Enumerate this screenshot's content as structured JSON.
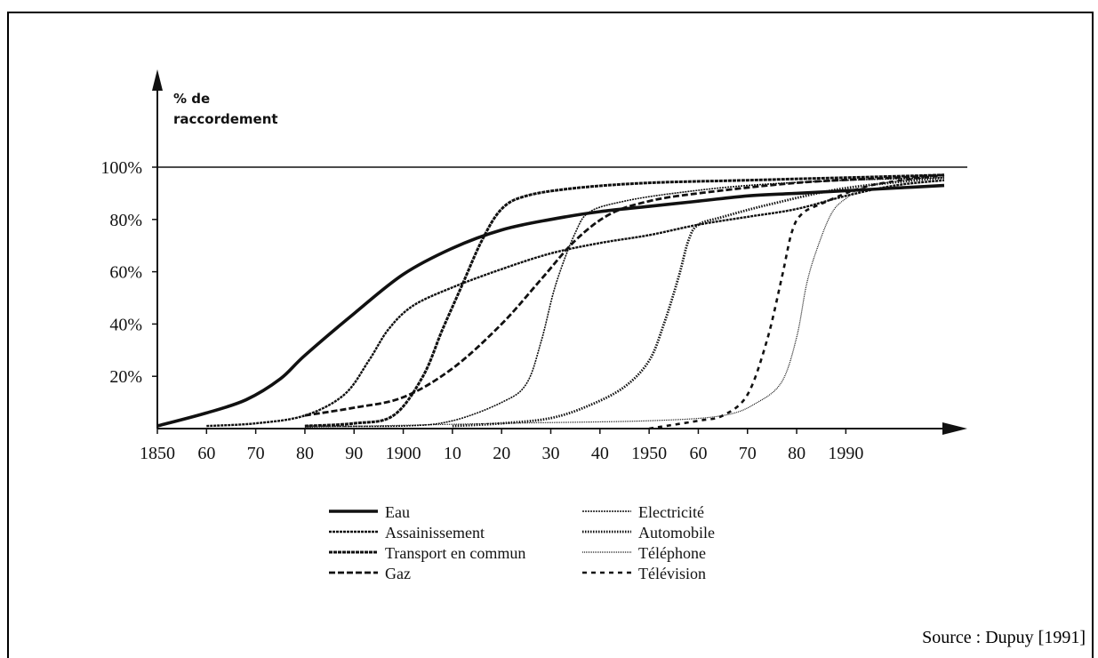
{
  "chart_data": {
    "type": "line",
    "ylabel": "% de raccordement",
    "ylabel_lines": [
      "% de",
      "raccordement"
    ],
    "xlim": [
      1850,
      2010
    ],
    "ylim": [
      0,
      100
    ],
    "y_ticks": [
      {
        "value": 100,
        "label": "100%"
      },
      {
        "value": 80,
        "label": "80%"
      },
      {
        "value": 60,
        "label": "60%"
      },
      {
        "value": 40,
        "label": "40%"
      },
      {
        "value": 20,
        "label": "20%"
      }
    ],
    "x_ticks": [
      {
        "value": 1850,
        "label": "1850"
      },
      {
        "value": 1860,
        "label": "60"
      },
      {
        "value": 1870,
        "label": "70"
      },
      {
        "value": 1880,
        "label": "80"
      },
      {
        "value": 1890,
        "label": "90"
      },
      {
        "value": 1900,
        "label": "1900"
      },
      {
        "value": 1910,
        "label": "10"
      },
      {
        "value": 1920,
        "label": "20"
      },
      {
        "value": 1930,
        "label": "30"
      },
      {
        "value": 1940,
        "label": "40"
      },
      {
        "value": 1950,
        "label": "1950"
      },
      {
        "value": 1960,
        "label": "60"
      },
      {
        "value": 1970,
        "label": "70"
      },
      {
        "value": 1980,
        "label": "80"
      },
      {
        "value": 1990,
        "label": "1990"
      }
    ],
    "reference_line": 100,
    "grid": false,
    "legend_position": "bottom",
    "series": [
      {
        "name": "Eau",
        "style": "thick-solid",
        "points": [
          [
            1850,
            1
          ],
          [
            1860,
            6
          ],
          [
            1868,
            11
          ],
          [
            1875,
            19
          ],
          [
            1880,
            28
          ],
          [
            1890,
            44
          ],
          [
            1900,
            59
          ],
          [
            1910,
            69
          ],
          [
            1920,
            76
          ],
          [
            1930,
            80
          ],
          [
            1940,
            83
          ],
          [
            1950,
            85
          ],
          [
            1960,
            87
          ],
          [
            1970,
            89
          ],
          [
            1980,
            90
          ],
          [
            1990,
            91
          ],
          [
            2000,
            92
          ],
          [
            2010,
            93
          ]
        ]
      },
      {
        "name": "Assainissement",
        "style": "serrated",
        "points": [
          [
            1860,
            1
          ],
          [
            1870,
            2
          ],
          [
            1880,
            5
          ],
          [
            1888,
            13
          ],
          [
            1893,
            26
          ],
          [
            1897,
            38
          ],
          [
            1902,
            47
          ],
          [
            1910,
            54
          ],
          [
            1920,
            61
          ],
          [
            1930,
            67
          ],
          [
            1940,
            71
          ],
          [
            1950,
            74
          ],
          [
            1960,
            78
          ],
          [
            1970,
            81
          ],
          [
            1980,
            84
          ],
          [
            1990,
            89
          ],
          [
            2000,
            93
          ],
          [
            2010,
            95
          ]
        ]
      },
      {
        "name": "Transport en commun",
        "style": "serrated-bold",
        "points": [
          [
            1880,
            1
          ],
          [
            1890,
            2
          ],
          [
            1898,
            5
          ],
          [
            1904,
            20
          ],
          [
            1908,
            38
          ],
          [
            1912,
            55
          ],
          [
            1916,
            72
          ],
          [
            1920,
            84
          ],
          [
            1925,
            89
          ],
          [
            1935,
            92
          ],
          [
            1950,
            94
          ],
          [
            1970,
            95
          ],
          [
            1990,
            96
          ],
          [
            2010,
            97
          ]
        ]
      },
      {
        "name": "Gaz",
        "style": "dashed-bold",
        "points": [
          [
            1880,
            5
          ],
          [
            1890,
            8
          ],
          [
            1900,
            12
          ],
          [
            1910,
            23
          ],
          [
            1920,
            40
          ],
          [
            1928,
            57
          ],
          [
            1935,
            72
          ],
          [
            1942,
            82
          ],
          [
            1950,
            87
          ],
          [
            1960,
            90
          ],
          [
            1980,
            94
          ],
          [
            2000,
            96
          ],
          [
            2010,
            97
          ]
        ]
      },
      {
        "name": "Electricité",
        "style": "wavy",
        "points": [
          [
            1880,
            1
          ],
          [
            1900,
            1
          ],
          [
            1910,
            3
          ],
          [
            1920,
            10
          ],
          [
            1925,
            17
          ],
          [
            1928,
            33
          ],
          [
            1931,
            55
          ],
          [
            1935,
            75
          ],
          [
            1938,
            83
          ],
          [
            1945,
            87
          ],
          [
            1955,
            90
          ],
          [
            1970,
            93
          ],
          [
            1990,
            95
          ],
          [
            2010,
            96
          ]
        ]
      },
      {
        "name": "Automobile",
        "style": "dotted-bold",
        "points": [
          [
            1910,
            1
          ],
          [
            1920,
            2
          ],
          [
            1930,
            4
          ],
          [
            1938,
            9
          ],
          [
            1945,
            16
          ],
          [
            1950,
            26
          ],
          [
            1953,
            40
          ],
          [
            1956,
            58
          ],
          [
            1958,
            72
          ],
          [
            1960,
            78
          ],
          [
            1965,
            81
          ],
          [
            1975,
            86
          ],
          [
            1990,
            92
          ],
          [
            2010,
            96
          ]
        ]
      },
      {
        "name": "Téléphone",
        "style": "fine",
        "points": [
          [
            1880,
            0.5
          ],
          [
            1920,
            2
          ],
          [
            1950,
            3
          ],
          [
            1965,
            5
          ],
          [
            1972,
            10
          ],
          [
            1977,
            18
          ],
          [
            1980,
            35
          ],
          [
            1982,
            55
          ],
          [
            1984,
            68
          ],
          [
            1987,
            82
          ],
          [
            1990,
            88
          ],
          [
            1995,
            93
          ],
          [
            2010,
            97
          ]
        ]
      },
      {
        "name": "Télévision",
        "style": "dashed",
        "points": [
          [
            1950,
            0
          ],
          [
            1960,
            3
          ],
          [
            1965,
            5
          ],
          [
            1970,
            13
          ],
          [
            1974,
            34
          ],
          [
            1977,
            58
          ],
          [
            1979,
            75
          ],
          [
            1981,
            82
          ],
          [
            1985,
            86
          ],
          [
            1995,
            93
          ],
          [
            2010,
            97
          ]
        ]
      }
    ]
  },
  "legend": [
    {
      "label": "Eau",
      "style": "thick-solid"
    },
    {
      "label": "Assainissement",
      "style": "serrated"
    },
    {
      "label": "Transport en commun",
      "style": "serrated-bold"
    },
    {
      "label": "Gaz",
      "style": "dashed-bold"
    },
    {
      "label": "Electricité",
      "style": "wavy"
    },
    {
      "label": "Automobile",
      "style": "dotted-bold"
    },
    {
      "label": "Téléphone",
      "style": "fine"
    },
    {
      "label": "Télévision",
      "style": "dashed"
    }
  ],
  "source": "Source : Dupuy [1991]",
  "colors": {
    "ink": "#111111",
    "background": "#ffffff"
  }
}
